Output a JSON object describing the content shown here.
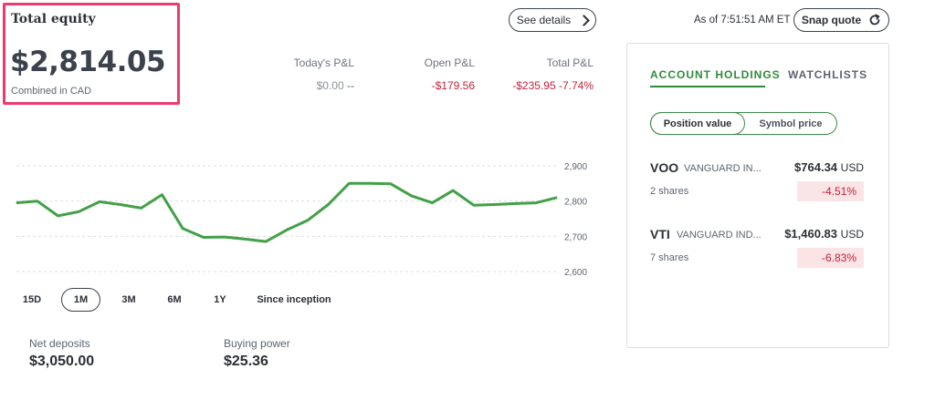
{
  "equity": {
    "title": "Total equity",
    "value": "$2,814.05",
    "note": "Combined in CAD"
  },
  "see_details": {
    "label": "See details"
  },
  "pnl": {
    "today": {
      "label": "Today's P&L",
      "value": "$0.00",
      "suffix": "--"
    },
    "open": {
      "label": "Open P&L",
      "value": "-$179.56"
    },
    "total": {
      "label": "Total P&L",
      "value": "-$235.95",
      "pct": "-7.74%"
    }
  },
  "chart_data": {
    "type": "line",
    "y_ticks": [
      "2,900",
      "2,800",
      "2,700",
      "2,600"
    ],
    "ylim": [
      2600,
      2900
    ],
    "grid": true,
    "color": "#43a047",
    "values": [
      2795,
      2800,
      2758,
      2770,
      2798,
      2790,
      2780,
      2818,
      2722,
      2697,
      2698,
      2692,
      2685,
      2718,
      2745,
      2790,
      2850,
      2850,
      2849,
      2815,
      2795,
      2830,
      2788,
      2790,
      2793,
      2795,
      2810
    ]
  },
  "ranges": [
    {
      "label": "15D",
      "active": false
    },
    {
      "label": "1M",
      "active": true
    },
    {
      "label": "3M",
      "active": false
    },
    {
      "label": "6M",
      "active": false
    },
    {
      "label": "1Y",
      "active": false
    },
    {
      "label": "Since inception",
      "active": false
    }
  ],
  "metrics": {
    "net_deposits": {
      "label": "Net deposits",
      "value": "$3,050.00"
    },
    "buying_power": {
      "label": "Buying power",
      "value": "$25.36"
    }
  },
  "header": {
    "as_of": "As of 7:51:51 AM ET",
    "snap_quote": "Snap quote",
    "snap_icon": "refresh-icon"
  },
  "holdings_panel": {
    "tabs": [
      "ACCOUNT HOLDINGS",
      "WATCHLISTS"
    ],
    "active_tab": "ACCOUNT HOLDINGS",
    "toggle": [
      "Position value",
      "Symbol price"
    ],
    "toggle_selected": "Position value",
    "holdings": [
      {
        "symbol": "VOO",
        "name": "VANGUARD IN...",
        "value": "$764.34",
        "currency": "USD",
        "shares": "2 shares",
        "change": "-4.51%"
      },
      {
        "symbol": "VTI",
        "name": "VANGUARD IND...",
        "value": "$1,460.83",
        "currency": "USD",
        "shares": "7 shares",
        "change": "-6.83%"
      }
    ]
  },
  "colors": {
    "accent": "#2e8b3a",
    "negative": "#c4213a",
    "highlight_border": "#ee3b6e",
    "chart_line": "#43a047"
  }
}
